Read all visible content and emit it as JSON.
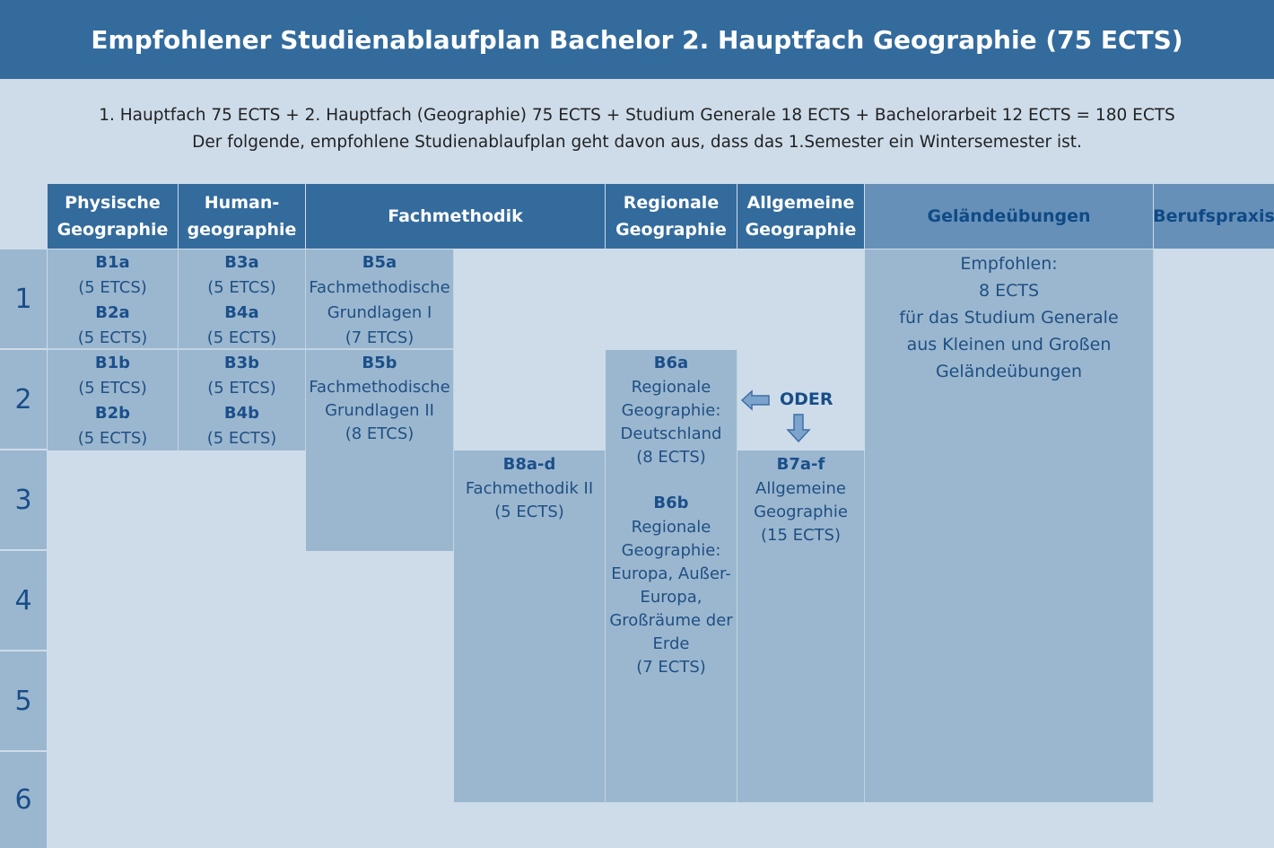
{
  "title": "Empfohlener Studienablaufplan Bachelor 2. Hauptfach Geographie (75 ECTS)",
  "intro": {
    "line1": "1. Hauptfach 75 ECTS + 2. Hauptfach (Geographie) 75 ECTS + Studium Generale 18 ECTS + Bachelorarbeit 12 ECTS = 180 ECTS",
    "line2": "Der folgende, empfohlene Studienablaufplan geht davon aus, dass das 1.Semester ein Wintersemester ist."
  },
  "columns": {
    "physische": [
      "Physische",
      "Geographie"
    ],
    "human": [
      "Human-",
      "geographie"
    ],
    "fachmethodik": "Fachmethodik",
    "regionale": [
      "Regionale",
      "Geographie"
    ],
    "allgemeine": [
      "Allgemeine",
      "Geographie"
    ],
    "gelaende": "Geländeübungen",
    "berufspraxis": "Berufspraxis"
  },
  "semesters": [
    "1",
    "2",
    "3",
    "4",
    "5",
    "6"
  ],
  "modules": {
    "b1a": {
      "code": "B1a",
      "ects": "(5 ETCS)"
    },
    "b2a": {
      "code": "B2a",
      "ects": "(5 ECTS)"
    },
    "b1b": {
      "code": "B1b",
      "ects": "(5 ETCS)"
    },
    "b2b": {
      "code": "B2b",
      "ects": "(5 ECTS)"
    },
    "b3a": {
      "code": "B3a",
      "ects": "(5 ETCS)"
    },
    "b4a": {
      "code": "B4a",
      "ects": "(5 ECTS)"
    },
    "b3b": {
      "code": "B3b",
      "ects": "(5 ETCS)"
    },
    "b4b": {
      "code": "B4b",
      "ects": "(5 ECTS)"
    },
    "b5a": {
      "code": "B5a",
      "name1": "Fachmethodische",
      "name2": "Grundlagen I",
      "ects": "(7 ETCS)"
    },
    "b5b": {
      "code": "B5b",
      "name1": "Fachmethodische",
      "name2": "Grundlagen II",
      "ects": "(8 ETCS)"
    },
    "b8": {
      "code": "B8a-d",
      "name": "Fachmethodik II",
      "ects": "(5 ECTS)"
    },
    "b6a": {
      "code": "B6a",
      "lines": [
        "Regionale",
        "Geographie:",
        "Deutschland",
        "(8 ECTS)"
      ]
    },
    "b6b": {
      "code": "B6b",
      "lines": [
        "Regionale",
        "Geographie:",
        "Europa, Außer-",
        "Europa,",
        "Großräume der",
        "Erde",
        "(7 ECTS)"
      ]
    },
    "b7": {
      "code": "B7a-f",
      "lines": [
        "Allgemeine",
        "Geographie",
        "(15 ECTS)"
      ]
    },
    "gelaende": [
      "Empfohlen:",
      "8 ECTS",
      "für das Studium Generale",
      "aus Kleinen und Großen",
      "Geländeübungen"
    ]
  },
  "oder": "ODER",
  "colors": {
    "header": "#336b9d",
    "header_light": "#6690b8",
    "cell": "#9bb7cf",
    "background": "#cedcea",
    "text_dark_blue": "#1f4f83"
  }
}
